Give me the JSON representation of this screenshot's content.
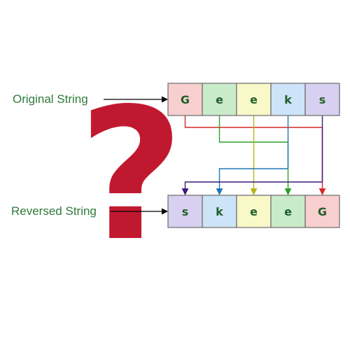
{
  "labels": {
    "original": "Original String",
    "reversed": "Reversed String"
  },
  "question_mark": "?",
  "original": [
    {
      "char": "G",
      "fill": "#f8cfcf"
    },
    {
      "char": "e",
      "fill": "#c9ebc9"
    },
    {
      "char": "e",
      "fill": "#f8f8c8"
    },
    {
      "char": "k",
      "fill": "#cde3f7"
    },
    {
      "char": "s",
      "fill": "#d8d0f0"
    }
  ],
  "reversed": [
    {
      "char": "s",
      "fill": "#d8d0f0"
    },
    {
      "char": "k",
      "fill": "#cde3f7"
    },
    {
      "char": "e",
      "fill": "#f8f8c8"
    },
    {
      "char": "e",
      "fill": "#c9ebc9"
    },
    {
      "char": "G",
      "fill": "#f8cfcf"
    }
  ],
  "connectors": [
    {
      "from": 0,
      "to": 4,
      "color": "#d62728"
    },
    {
      "from": 1,
      "to": 3,
      "color": "#2ca02c"
    },
    {
      "from": 2,
      "to": 2,
      "color": "#b5b512"
    },
    {
      "from": 3,
      "to": 1,
      "color": "#1f77b4"
    },
    {
      "from": 4,
      "to": 0,
      "color": "#3b1a7a"
    }
  ],
  "colors": {
    "label_text": "#2f7a3a",
    "cell_text": "#1f5f2a",
    "cell_border": "#6a6a6a",
    "pointer_arrow": "#000000",
    "question_mark": "#c0192f"
  }
}
